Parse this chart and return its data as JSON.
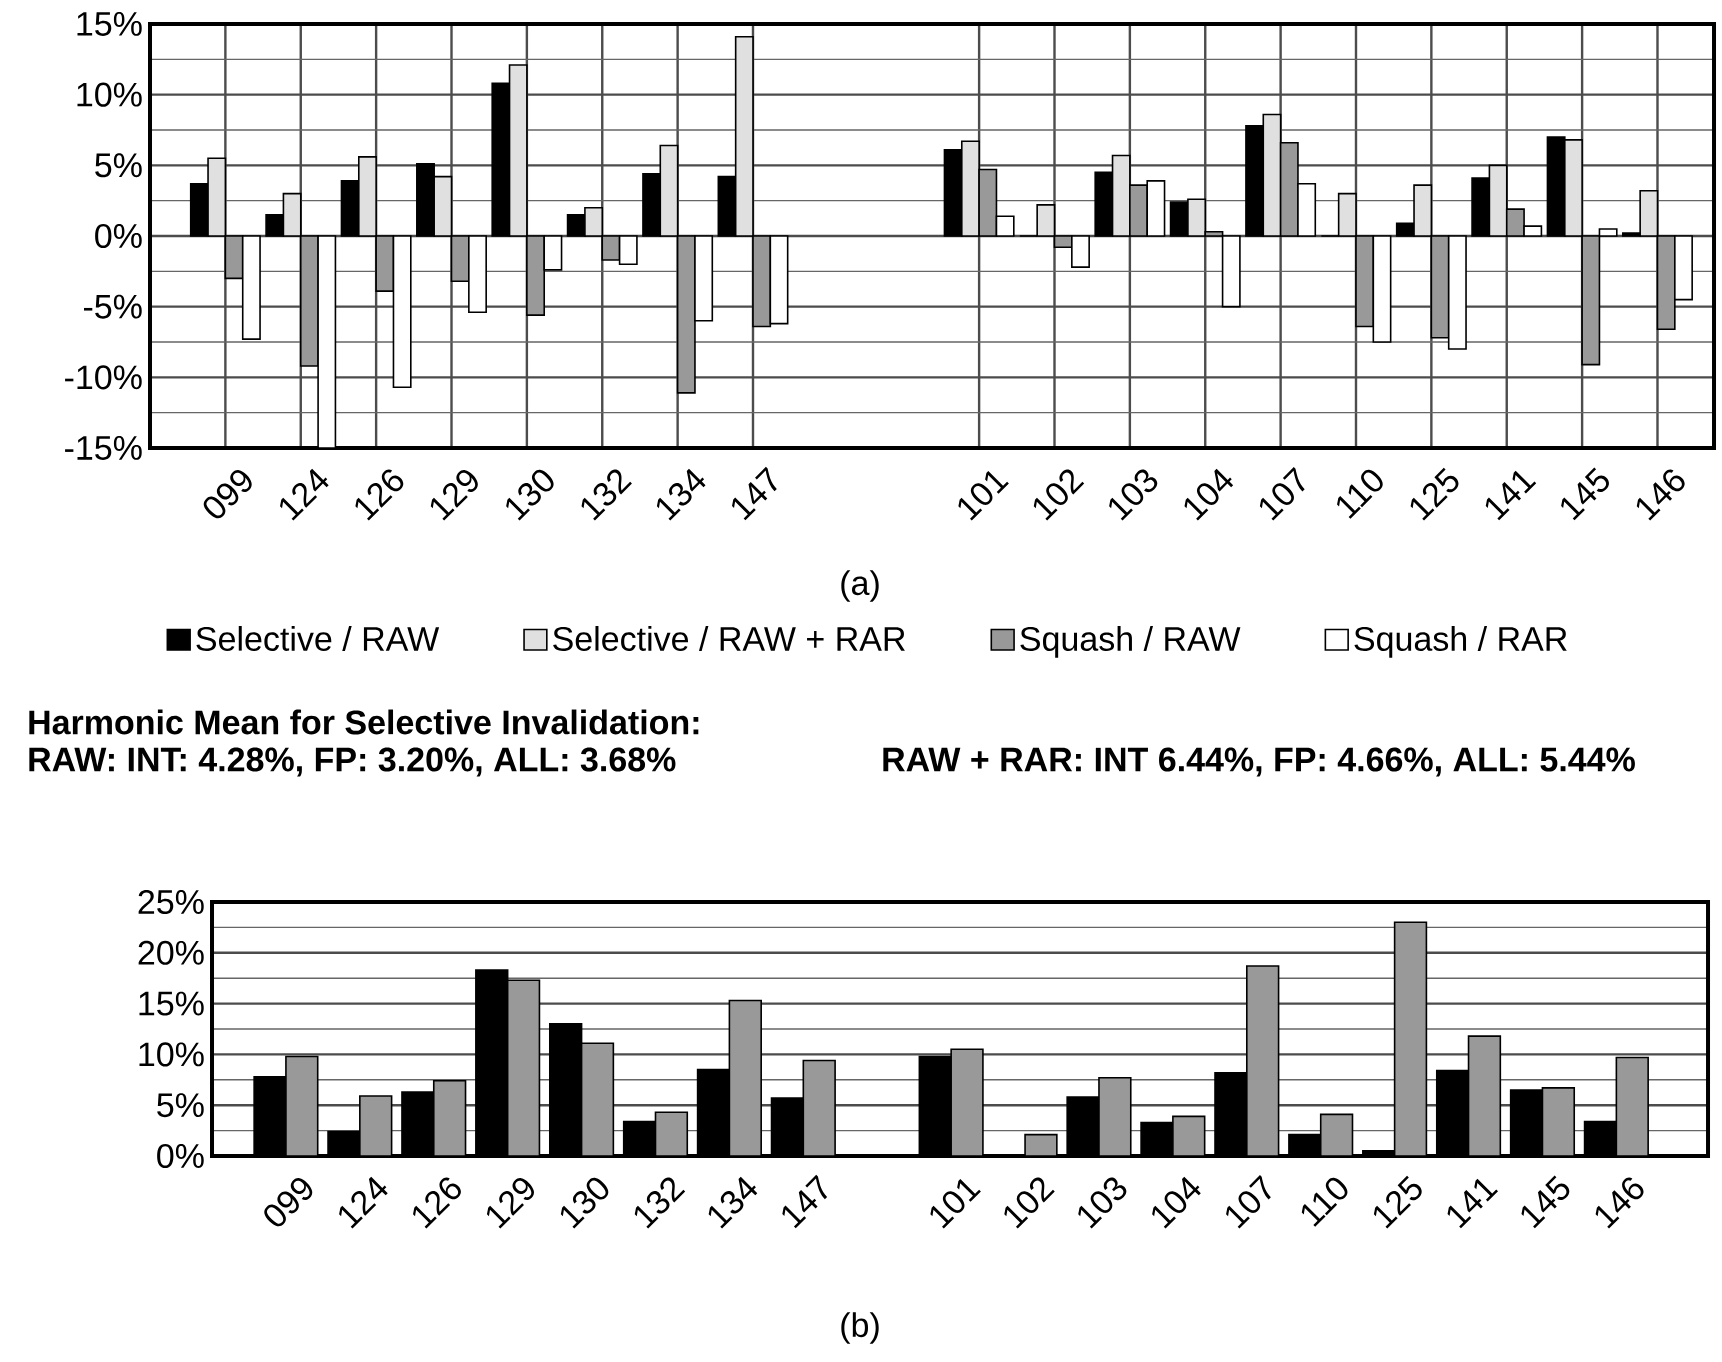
{
  "chart_data": [
    {
      "type": "bar",
      "categories": [
        "099",
        "124",
        "126",
        "129",
        "130",
        "132",
        "134",
        "147",
        null,
        null,
        "101",
        "102",
        "103",
        "104",
        "107",
        "110",
        "125",
        "141",
        "145",
        "146"
      ],
      "series": [
        {
          "name": "Selective / RAW",
          "color": "#000000",
          "values": [
            3.7,
            1.5,
            3.9,
            5.1,
            10.8,
            1.5,
            4.4,
            4.2,
            null,
            null,
            6.1,
            0,
            4.5,
            2.4,
            7.8,
            0,
            0.9,
            4.1,
            7.0,
            0.2
          ]
        },
        {
          "name": "Selective / RAW + RAR",
          "color": "#e0e0e0",
          "values": [
            5.5,
            3.0,
            5.6,
            4.2,
            12.1,
            2.0,
            6.4,
            14.1,
            null,
            null,
            6.7,
            2.2,
            5.7,
            2.6,
            8.6,
            3.0,
            3.6,
            5.0,
            6.8,
            3.2
          ]
        },
        {
          "name": "Squash / RAW",
          "color": "#999999",
          "values": [
            -3.0,
            -9.2,
            -3.9,
            -3.2,
            -5.6,
            -1.7,
            -11.1,
            -6.4,
            null,
            null,
            4.7,
            -0.8,
            3.6,
            0.3,
            6.6,
            -6.4,
            -7.2,
            1.9,
            -9.1,
            -6.6
          ]
        },
        {
          "name": "Squash / RAR",
          "color": "#ffffff",
          "values": [
            -7.3,
            -15.0,
            -10.7,
            -5.4,
            -2.4,
            -2.0,
            -6.0,
            -6.2,
            null,
            null,
            1.4,
            -2.2,
            3.9,
            -5.0,
            3.7,
            -7.5,
            -8.0,
            0.7,
            0.5,
            -4.5
          ]
        }
      ],
      "ylim": [
        -15,
        15
      ],
      "yticks": [
        {
          "value": -15,
          "label": "-15%"
        },
        {
          "value": -10,
          "label": "-10%"
        },
        {
          "value": -5,
          "label": "-5%"
        },
        {
          "value": 0,
          "label": "0%"
        },
        {
          "value": 5,
          "label": "5%"
        },
        {
          "value": 10,
          "label": "10%"
        },
        {
          "value": 15,
          "label": "15%"
        }
      ],
      "grid": true,
      "legend": "bottom",
      "annotations": [
        "(a)"
      ]
    },
    {
      "type": "bar",
      "title": "Harmonic Mean for Selective Invalidation:",
      "categories": [
        "099",
        "124",
        "126",
        "129",
        "130",
        "132",
        "134",
        "147",
        null,
        "101",
        "102",
        "103",
        "104",
        "107",
        "110",
        "125",
        "141",
        "145",
        "146"
      ],
      "series": [
        {
          "color": "#000000",
          "values": [
            7.8,
            2.4,
            6.3,
            18.3,
            13.0,
            3.4,
            8.5,
            5.7,
            null,
            9.8,
            0,
            5.8,
            3.3,
            8.2,
            2.1,
            0.5,
            8.4,
            6.5,
            3.4
          ]
        },
        {
          "color": "#999999",
          "values": [
            9.8,
            5.9,
            7.4,
            17.3,
            11.1,
            4.3,
            15.3,
            9.4,
            null,
            10.5,
            2.1,
            7.7,
            3.9,
            18.7,
            4.1,
            23.0,
            11.8,
            6.7,
            9.7
          ]
        }
      ],
      "ylim": [
        0,
        25
      ],
      "yticks": [
        {
          "value": 0,
          "label": "0%"
        },
        {
          "value": 5,
          "label": "5%"
        },
        {
          "value": 10,
          "label": "10%"
        },
        {
          "value": 15,
          "label": "15%"
        },
        {
          "value": 20,
          "label": "20%"
        },
        {
          "value": 25,
          "label": "25%"
        }
      ],
      "grid": "y",
      "annotations": [
        "RAW: INT: 4.28%, FP: 3.20%, ALL: 3.68%",
        "RAW + RAR: INT 6.44%, FP: 4.66%, ALL: 5.44%",
        "(b)"
      ]
    }
  ]
}
